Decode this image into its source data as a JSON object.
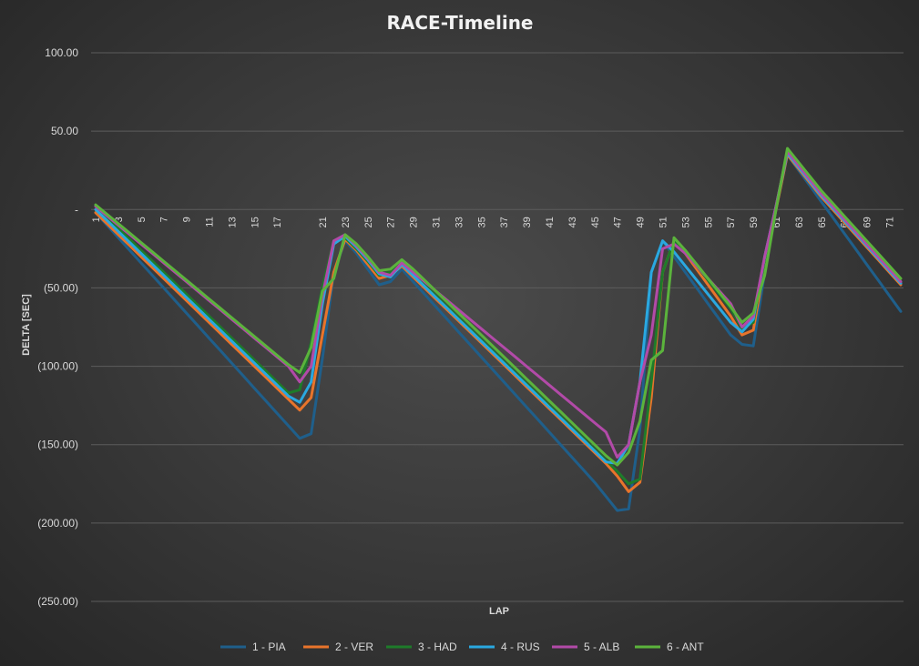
{
  "chart_data": {
    "type": "line",
    "title": "RACE-Timeline",
    "xlabel": "LAP",
    "ylabel": "DELTA [SEC]",
    "ylim": [
      -250,
      100
    ],
    "yticks": [
      "100.00",
      "50.00",
      "-",
      "(50.00)",
      "(100.00)",
      "(150.00)",
      "(200.00)",
      "(250.00)"
    ],
    "ytick_values": [
      100,
      50,
      0,
      -50,
      -100,
      -150,
      -200,
      -250
    ],
    "x": [
      1,
      2,
      3,
      4,
      5,
      6,
      7,
      8,
      9,
      10,
      11,
      12,
      13,
      14,
      15,
      16,
      17,
      18,
      19,
      20,
      21,
      22,
      23,
      24,
      25,
      26,
      27,
      28,
      29,
      30,
      31,
      32,
      33,
      34,
      35,
      36,
      37,
      38,
      39,
      40,
      41,
      42,
      43,
      44,
      45,
      46,
      47,
      48,
      49,
      50,
      51,
      52,
      53,
      54,
      55,
      56,
      57,
      58,
      59,
      60,
      61,
      62,
      63,
      64,
      65,
      66,
      67,
      68,
      69,
      70,
      71,
      72
    ],
    "xticks": [
      1,
      3,
      5,
      7,
      9,
      11,
      13,
      15,
      17,
      21,
      23,
      25,
      27,
      29,
      31,
      33,
      35,
      37,
      39,
      41,
      43,
      45,
      47,
      49,
      51,
      53,
      55,
      57,
      59,
      61,
      63,
      65,
      67,
      69,
      71
    ],
    "grid": true,
    "legend_position": "bottom",
    "series": [
      {
        "name": "1 - PIA",
        "color": "#1f5f8b",
        "values": [
          -2,
          -10,
          -18,
          -26,
          -34,
          -42,
          -50,
          -58,
          -66,
          -74,
          -82,
          -90,
          -98,
          -106,
          -114,
          -122,
          -130,
          -138,
          -146,
          -143,
          -95,
          -40,
          -20,
          -28,
          -38,
          -48,
          -46,
          -38,
          -46,
          -54,
          -62,
          -70,
          -78,
          -86,
          -94,
          -102,
          -110,
          -118,
          -126,
          -134,
          -142,
          -150,
          -158,
          -166,
          -174,
          -183,
          -192,
          -191,
          -140,
          -40,
          -20,
          -30,
          -40,
          -50,
          -60,
          -70,
          -80,
          -86,
          -87,
          -40,
          0,
          35,
          25,
          15,
          5,
          -5,
          -15,
          -25,
          -35,
          -45,
          -55,
          -65
        ]
      },
      {
        "name": "2 - VER",
        "color": "#e8742b",
        "values": [
          -2,
          -9,
          -16,
          -23,
          -30,
          -37,
          -44,
          -51,
          -58,
          -65,
          -72,
          -79,
          -86,
          -93,
          -100,
          -107,
          -114,
          -121,
          -128,
          -120,
          -80,
          -40,
          -19,
          -26,
          -35,
          -44,
          -42,
          -36,
          -43,
          -50,
          -57,
          -64,
          -71,
          -78,
          -85,
          -92,
          -99,
          -106,
          -113,
          -120,
          -127,
          -134,
          -141,
          -148,
          -155,
          -162,
          -170,
          -180,
          -174,
          -120,
          -40,
          -20,
          -28,
          -38,
          -48,
          -58,
          -68,
          -80,
          -77,
          -35,
          0,
          35,
          26,
          17,
          8,
          0,
          -8,
          -16,
          -24,
          -32,
          -40,
          -48
        ]
      },
      {
        "name": "3 - HAD",
        "color": "#1e7b2a",
        "values": [
          2,
          -5,
          -12,
          -19,
          -26,
          -33,
          -40,
          -47,
          -54,
          -61,
          -68,
          -75,
          -82,
          -89,
          -96,
          -103,
          -110,
          -117,
          -115,
          -85,
          -50,
          -20,
          -18,
          -25,
          -33,
          -42,
          -40,
          -34,
          -41,
          -48,
          -55,
          -62,
          -69,
          -76,
          -83,
          -90,
          -97,
          -104,
          -111,
          -118,
          -125,
          -132,
          -139,
          -146,
          -153,
          -160,
          -167,
          -175,
          -172,
          -110,
          -40,
          -20,
          -27,
          -36,
          -45,
          -54,
          -63,
          -76,
          -72,
          -32,
          2,
          37,
          28,
          19,
          10,
          2,
          -6,
          -14,
          -22,
          -30,
          -38,
          -46
        ]
      },
      {
        "name": "4 - RUS",
        "color": "#2aa8e0",
        "values": [
          0,
          -7,
          -14,
          -21,
          -28,
          -35,
          -42,
          -49,
          -56,
          -63,
          -70,
          -77,
          -84,
          -91,
          -98,
          -105,
          -112,
          -119,
          -123,
          -110,
          -60,
          -22,
          -17,
          -24,
          -32,
          -41,
          -43,
          -35,
          -42,
          -49,
          -56,
          -63,
          -70,
          -77,
          -84,
          -91,
          -98,
          -105,
          -112,
          -119,
          -126,
          -133,
          -140,
          -147,
          -154,
          -161,
          -162,
          -150,
          -110,
          -40,
          -20,
          -27,
          -36,
          -45,
          -54,
          -63,
          -72,
          -78,
          -70,
          -30,
          2,
          36,
          27,
          18,
          9,
          1,
          -7,
          -15,
          -23,
          -31,
          -39,
          -47
        ]
      },
      {
        "name": "5 - ALB",
        "color": "#b24aa8",
        "values": [
          2,
          -4,
          -10,
          -16,
          -22,
          -28,
          -34,
          -40,
          -46,
          -52,
          -58,
          -64,
          -70,
          -76,
          -82,
          -88,
          -94,
          -100,
          -110,
          -100,
          -55,
          -20,
          -16,
          -23,
          -31,
          -40,
          -42,
          -34,
          -40,
          -46,
          -52,
          -58,
          -64,
          -70,
          -76,
          -82,
          -88,
          -94,
          -100,
          -106,
          -112,
          -118,
          -124,
          -130,
          -136,
          -142,
          -158,
          -150,
          -110,
          -80,
          -25,
          -22,
          -28,
          -36,
          -44,
          -52,
          -60,
          -75,
          -68,
          -30,
          2,
          37,
          28,
          19,
          10,
          2,
          -6,
          -14,
          -22,
          -30,
          -38,
          -46
        ]
      },
      {
        "name": "6 - ANT",
        "color": "#5bb33c",
        "values": [
          3,
          -3,
          -9,
          -15,
          -21,
          -27,
          -33,
          -39,
          -45,
          -51,
          -57,
          -63,
          -69,
          -75,
          -81,
          -87,
          -93,
          -99,
          -104,
          -88,
          -52,
          -44,
          -16,
          -22,
          -30,
          -39,
          -38,
          -32,
          -38,
          -45,
          -52,
          -59,
          -66,
          -73,
          -80,
          -87,
          -94,
          -101,
          -108,
          -115,
          -122,
          -129,
          -136,
          -143,
          -150,
          -157,
          -163,
          -155,
          -135,
          -96,
          -90,
          -18,
          -26,
          -35,
          -44,
          -53,
          -62,
          -72,
          -66,
          -42,
          0,
          39,
          30,
          21,
          12,
          4,
          -4,
          -12,
          -20,
          -28,
          -36,
          -44
        ]
      }
    ]
  }
}
